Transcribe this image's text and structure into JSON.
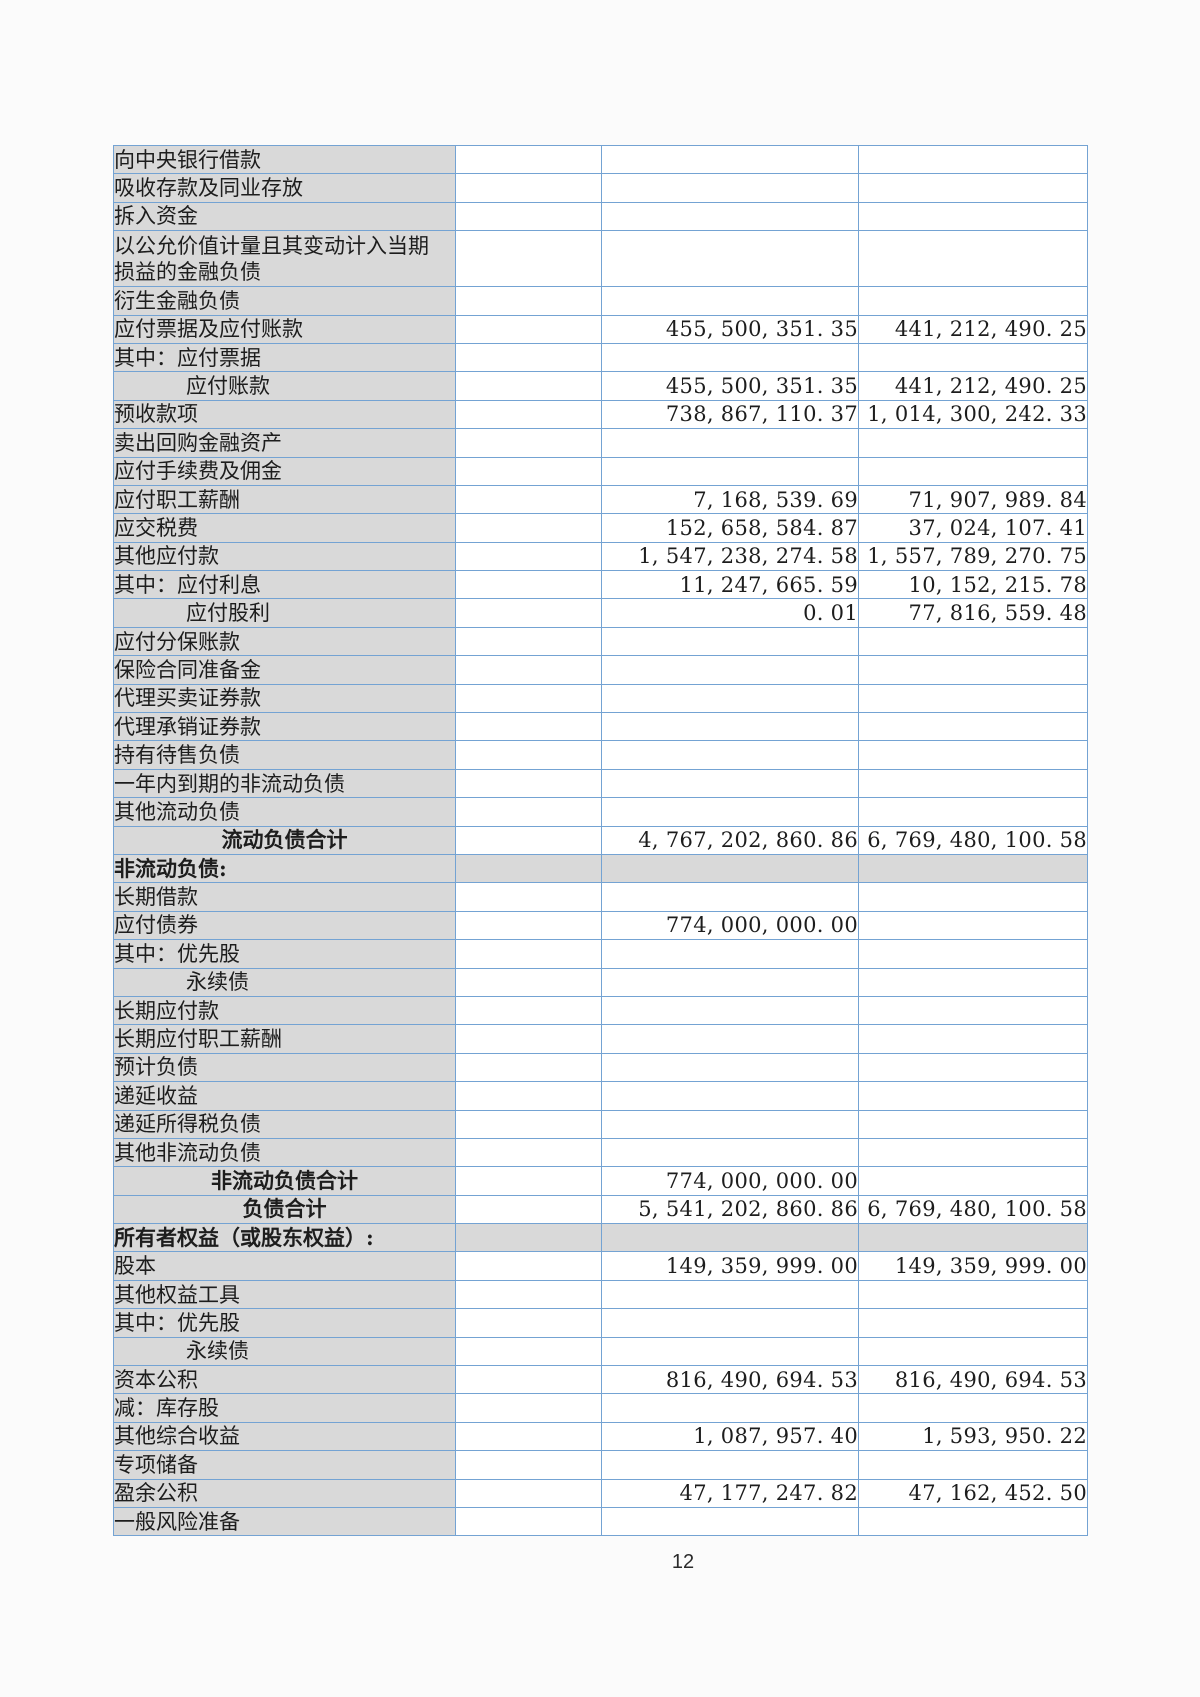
{
  "page": {
    "number": "12"
  },
  "colors": {
    "row_label_background": "#d9d9d9",
    "table_border": "#74a3d3",
    "cell_background": "#ffffff",
    "text": "#1d1d1d"
  },
  "table": {
    "columns": [
      "item",
      "note",
      "amount_current",
      "amount_prior"
    ],
    "rows": [
      {
        "label": "向中央银行借款"
      },
      {
        "label": "吸收存款及同业存放"
      },
      {
        "label": "拆入资金"
      },
      {
        "label": "以公允价值计量且其变动计入当期\n损益的金融负债",
        "tall": true
      },
      {
        "label": "衍生金融负债"
      },
      {
        "label": "应付票据及应付账款",
        "current": "455, 500, 351. 35",
        "prior": "441, 212, 490. 25"
      },
      {
        "label": "其中：应付票据"
      },
      {
        "label": "应付账款",
        "indent": true,
        "current": "455, 500, 351. 35",
        "prior": "441, 212, 490. 25"
      },
      {
        "label": "预收款项",
        "current": "738, 867, 110. 37",
        "prior": "1, 014, 300, 242. 33"
      },
      {
        "label": "卖出回购金融资产"
      },
      {
        "label": "应付手续费及佣金"
      },
      {
        "label": "应付职工薪酬",
        "current": "7, 168, 539. 69",
        "prior": "71, 907, 989. 84"
      },
      {
        "label": "应交税费",
        "current": "152, 658, 584. 87",
        "prior": "37, 024, 107. 41"
      },
      {
        "label": "其他应付款",
        "current": "1, 547, 238, 274. 58",
        "prior": "1, 557, 789, 270. 75"
      },
      {
        "label": "其中：应付利息",
        "current": "11, 247, 665. 59",
        "prior": "10, 152, 215. 78"
      },
      {
        "label": "应付股利",
        "indent": true,
        "current": "0. 01",
        "prior": "77, 816, 559. 48"
      },
      {
        "label": "应付分保账款"
      },
      {
        "label": "保险合同准备金"
      },
      {
        "label": "代理买卖证券款"
      },
      {
        "label": "代理承销证券款"
      },
      {
        "label": "持有待售负债"
      },
      {
        "label": "一年内到期的非流动负债"
      },
      {
        "label": "其他流动负债"
      },
      {
        "label": "流动负债合计",
        "style": "total",
        "current": "4, 767, 202, 860. 86",
        "prior": "6, 769, 480, 100. 58"
      },
      {
        "label": "非流动负债:",
        "style": "section"
      },
      {
        "label": "长期借款"
      },
      {
        "label": "应付债券",
        "current": "774, 000, 000. 00"
      },
      {
        "label": "其中：优先股"
      },
      {
        "label": "永续债",
        "indent": true
      },
      {
        "label": "长期应付款"
      },
      {
        "label": "长期应付职工薪酬"
      },
      {
        "label": "预计负债"
      },
      {
        "label": "递延收益"
      },
      {
        "label": "递延所得税负债"
      },
      {
        "label": "其他非流动负债"
      },
      {
        "label": "非流动负债合计",
        "style": "total",
        "current": "774, 000, 000. 00"
      },
      {
        "label": "负债合计",
        "style": "total",
        "current": "5, 541, 202, 860. 86",
        "prior": "6, 769, 480, 100. 58"
      },
      {
        "label": "所有者权益（或股东权益）:",
        "style": "section"
      },
      {
        "label": "股本",
        "current": "149, 359, 999. 00",
        "prior": "149, 359, 999. 00"
      },
      {
        "label": "其他权益工具"
      },
      {
        "label": "其中：优先股"
      },
      {
        "label": "永续债",
        "indent": true
      },
      {
        "label": "资本公积",
        "current": "816, 490, 694. 53",
        "prior": "816, 490, 694. 53"
      },
      {
        "label": "减：库存股"
      },
      {
        "label": "其他综合收益",
        "current": "1, 087, 957. 40",
        "prior": "1, 593, 950. 22"
      },
      {
        "label": "专项储备"
      },
      {
        "label": "盈余公积",
        "current": "47, 177, 247. 82",
        "prior": "47, 162, 452. 50"
      },
      {
        "label": "一般风险准备"
      }
    ]
  }
}
